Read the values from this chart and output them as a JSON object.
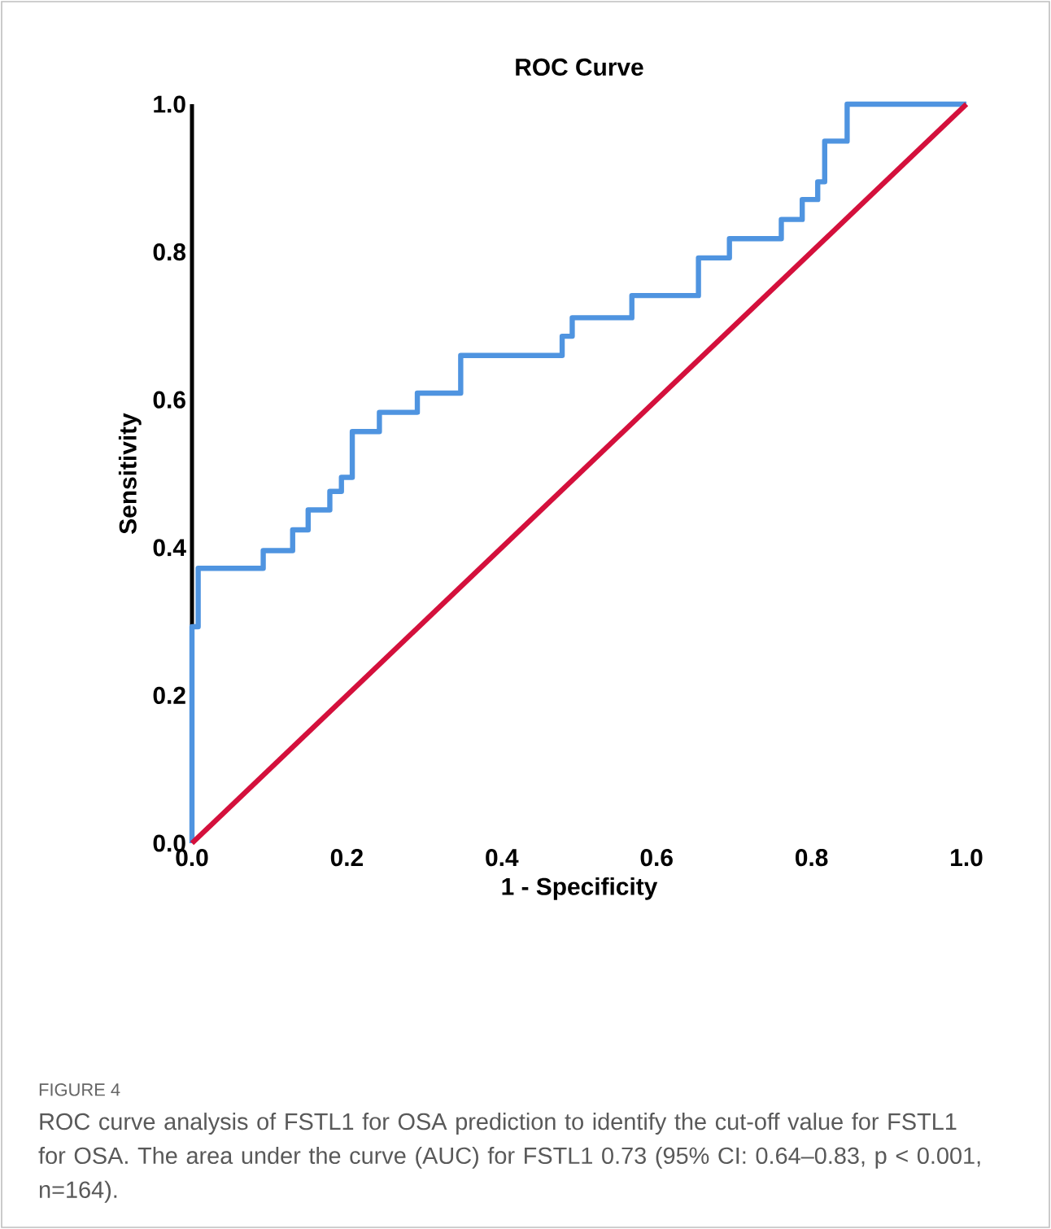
{
  "chart_data": {
    "type": "step",
    "title": "ROC Curve",
    "xlabel": "1 - Specificity",
    "ylabel": "Sensitivity",
    "xlim": [
      0,
      1
    ],
    "ylim": [
      0,
      1
    ],
    "xticks": [
      {
        "value": 0,
        "label": "0.0"
      },
      {
        "value": 0.2,
        "label": "0.2"
      },
      {
        "value": 0.4,
        "label": "0.4"
      },
      {
        "value": 0.6,
        "label": "0.6"
      },
      {
        "value": 0.8,
        "label": "0.8"
      },
      {
        "value": 1,
        "label": "1.0"
      }
    ],
    "yticks": [
      {
        "value": 0,
        "label": "0.0"
      },
      {
        "value": 0.2,
        "label": "0.2"
      },
      {
        "value": 0.4,
        "label": "0.4"
      },
      {
        "value": 0.6,
        "label": "0.6"
      },
      {
        "value": 0.8,
        "label": "0.8"
      },
      {
        "value": 1,
        "label": "1.0"
      }
    ],
    "series": [
      {
        "color": "#4f94e0",
        "x": [
          0,
          0,
          0.008,
          0.008,
          0.092,
          0.092,
          0.13,
          0.13,
          0.15,
          0.15,
          0.178,
          0.178,
          0.193,
          0.207,
          0.207,
          0.242,
          0.291,
          0.291,
          0.347,
          0.347,
          0.473,
          0.478,
          0.491,
          0.491,
          0.568,
          0.568,
          0.654,
          0.654,
          0.694,
          0.694,
          0.761,
          0.761,
          0.788,
          0.788,
          0.808,
          0.808,
          0.817,
          0.817,
          0.846,
          0.846,
          1
        ],
        "values": [
          0,
          0.293,
          0.293,
          0.372,
          0.372,
          0.396,
          0.396,
          0.424,
          0.424,
          0.451,
          0.451,
          0.476,
          0.495,
          0.495,
          0.557,
          0.583,
          0.583,
          0.609,
          0.609,
          0.66,
          0.66,
          0.686,
          0.686,
          0.711,
          0.711,
          0.741,
          0.741,
          0.792,
          0.792,
          0.818,
          0.818,
          0.844,
          0.844,
          0.871,
          0.871,
          0.895,
          0.895,
          0.95,
          0.95,
          1,
          1
        ]
      },
      {
        "type": "line",
        "color": "#d4103c",
        "x": [
          0,
          1
        ],
        "values": [
          0,
          1
        ]
      }
    ],
    "marker": "none",
    "line_style": "solid",
    "annotations": [
      "FIGURE 4",
      "ROC curve analysis of FSTL1 for OSA prediction to identify the cut-off value for FSTL1 for OSA. The area under the curve (AUC) for FSTL1 0.73 (95% CI: 0.64–0.83, p < 0.001, n=164)."
    ]
  }
}
